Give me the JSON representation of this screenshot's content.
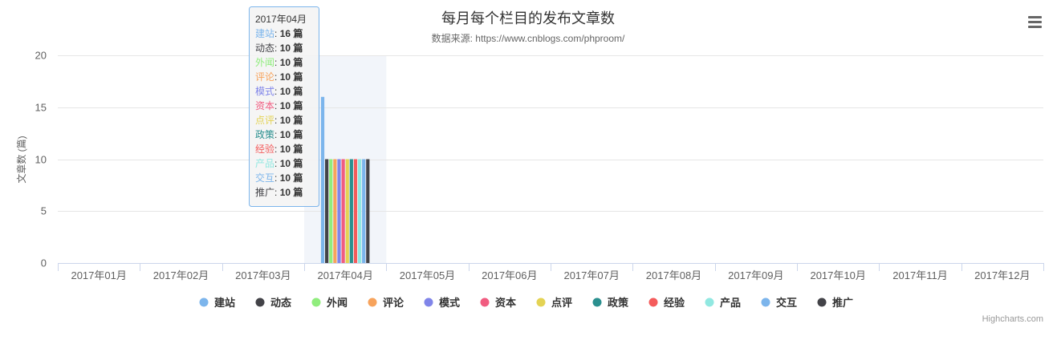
{
  "chart_data": {
    "type": "bar",
    "title": "每月每个栏目的发布文章数",
    "subtitle": "数据来源: https://www.cnblogs.com/phproom/",
    "ylabel": "文章数 (篇)",
    "xlabel": "",
    "ylim": [
      0,
      20
    ],
    "yticks": [
      0,
      5,
      10,
      15,
      20
    ],
    "grid": true,
    "legend_position": "bottom",
    "categories": [
      "2017年01月",
      "2017年02月",
      "2017年03月",
      "2017年04月",
      "2017年05月",
      "2017年06月",
      "2017年07月",
      "2017年08月",
      "2017年09月",
      "2017年10月",
      "2017年11月",
      "2017年12月"
    ],
    "series": [
      {
        "name": "建站",
        "color": "#7cb5ec",
        "values": [
          0,
          0,
          0,
          16,
          0,
          0,
          0,
          0,
          0,
          0,
          0,
          0
        ]
      },
      {
        "name": "动态",
        "color": "#434348",
        "values": [
          0,
          0,
          0,
          10,
          0,
          0,
          0,
          0,
          0,
          0,
          0,
          0
        ]
      },
      {
        "name": "外闻",
        "color": "#90ed7d",
        "values": [
          0,
          0,
          0,
          10,
          0,
          0,
          0,
          0,
          0,
          0,
          0,
          0
        ]
      },
      {
        "name": "评论",
        "color": "#f7a35c",
        "values": [
          0,
          0,
          0,
          10,
          0,
          0,
          0,
          0,
          0,
          0,
          0,
          0
        ]
      },
      {
        "name": "模式",
        "color": "#8085e9",
        "values": [
          0,
          0,
          0,
          10,
          0,
          0,
          0,
          0,
          0,
          0,
          0,
          0
        ]
      },
      {
        "name": "资本",
        "color": "#f15c80",
        "values": [
          0,
          0,
          0,
          10,
          0,
          0,
          0,
          0,
          0,
          0,
          0,
          0
        ]
      },
      {
        "name": "点评",
        "color": "#e4d354",
        "values": [
          0,
          0,
          0,
          10,
          0,
          0,
          0,
          0,
          0,
          0,
          0,
          0
        ]
      },
      {
        "name": "政策",
        "color": "#2b908f",
        "values": [
          0,
          0,
          0,
          10,
          0,
          0,
          0,
          0,
          0,
          0,
          0,
          0
        ]
      },
      {
        "name": "经验",
        "color": "#f45b5b",
        "values": [
          0,
          0,
          0,
          10,
          0,
          0,
          0,
          0,
          0,
          0,
          0,
          0
        ]
      },
      {
        "name": "产品",
        "color": "#91e8e1",
        "values": [
          0,
          0,
          0,
          10,
          0,
          0,
          0,
          0,
          0,
          0,
          0,
          0
        ]
      },
      {
        "name": "交互",
        "color": "#7cb5ec",
        "values": [
          0,
          0,
          0,
          10,
          0,
          0,
          0,
          0,
          0,
          0,
          0,
          0
        ]
      },
      {
        "name": "推广",
        "color": "#434348",
        "values": [
          0,
          0,
          0,
          10,
          0,
          0,
          0,
          0,
          0,
          0,
          0,
          0
        ]
      }
    ],
    "tooltip": {
      "category": "2017年04月",
      "unit": "篇",
      "entries": [
        {
          "name": "建站",
          "value": 16
        },
        {
          "name": "动态",
          "value": 10
        },
        {
          "name": "外闻",
          "value": 10
        },
        {
          "name": "评论",
          "value": 10
        },
        {
          "name": "模式",
          "value": 10
        },
        {
          "name": "资本",
          "value": 10
        },
        {
          "name": "点评",
          "value": 10
        },
        {
          "name": "政策",
          "value": 10
        },
        {
          "name": "经验",
          "value": 10
        },
        {
          "name": "产品",
          "value": 10
        },
        {
          "name": "交互",
          "value": 10
        },
        {
          "name": "推广",
          "value": 10
        }
      ]
    },
    "hover_category": "2017年04月",
    "credits": "Highcharts.com"
  },
  "menu": {
    "icon": "hamburger-menu-icon"
  }
}
